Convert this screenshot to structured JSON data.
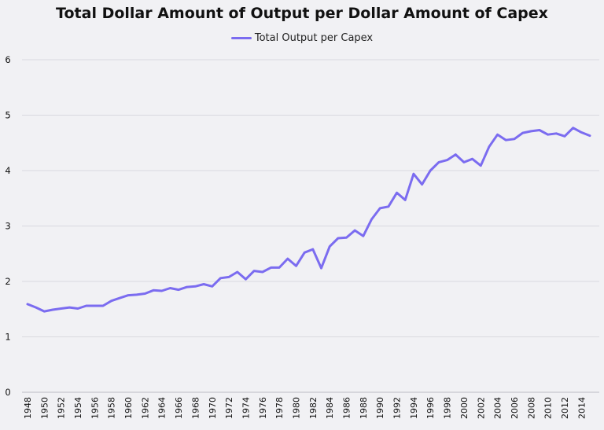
{
  "chart_data": {
    "type": "line",
    "title": "Total Dollar Amount of Output per Dollar Amount of Capex",
    "xlabel": "",
    "ylabel": "",
    "legend_position": "top-center",
    "grid": "horizontal",
    "ylim": [
      0,
      6
    ],
    "y_ticks": [
      "0",
      "1",
      "2",
      "3",
      "4",
      "5",
      "6"
    ],
    "x_tick_labels": [
      "1948",
      "1950",
      "1952",
      "1954",
      "1956",
      "1958",
      "1960",
      "1962",
      "1964",
      "1966",
      "1968",
      "1970",
      "1972",
      "1974",
      "1976",
      "1978",
      "1980",
      "1982",
      "1984",
      "1986",
      "1988",
      "1990",
      "1992",
      "1994",
      "1996",
      "1998",
      "2000",
      "2002",
      "2004",
      "2006",
      "2008",
      "2010",
      "2012",
      "2014"
    ],
    "x": [
      1948,
      1949,
      1950,
      1951,
      1952,
      1953,
      1954,
      1955,
      1956,
      1957,
      1958,
      1959,
      1960,
      1961,
      1962,
      1963,
      1964,
      1965,
      1966,
      1967,
      1968,
      1969,
      1970,
      1971,
      1972,
      1973,
      1974,
      1975,
      1976,
      1977,
      1978,
      1979,
      1980,
      1981,
      1982,
      1983,
      1984,
      1985,
      1986,
      1987,
      1988,
      1989,
      1990,
      1991,
      1992,
      1993,
      1994,
      1995,
      1996,
      1997,
      1998,
      1999,
      2000,
      2001,
      2002,
      2003,
      2004,
      2005,
      2006,
      2007,
      2008,
      2009,
      2010,
      2011,
      2012,
      2013,
      2014,
      2015
    ],
    "series": [
      {
        "name": "Total Output per Capex",
        "color": "#7b6cf0",
        "values": [
          1.59,
          1.53,
          1.46,
          1.49,
          1.51,
          1.53,
          1.51,
          1.56,
          1.56,
          1.56,
          1.65,
          1.7,
          1.75,
          1.76,
          1.78,
          1.84,
          1.83,
          1.88,
          1.85,
          1.9,
          1.91,
          1.95,
          1.91,
          2.06,
          2.08,
          2.17,
          2.04,
          2.19,
          2.17,
          2.25,
          2.25,
          2.41,
          2.28,
          2.52,
          2.58,
          2.24,
          2.63,
          2.78,
          2.79,
          2.92,
          2.82,
          3.12,
          3.32,
          3.35,
          3.6,
          3.47,
          3.94,
          3.75,
          4.0,
          4.15,
          4.19,
          4.29,
          4.15,
          4.21,
          4.09,
          4.43,
          4.65,
          4.55,
          4.57,
          4.68,
          4.71,
          4.73,
          4.65,
          4.67,
          4.62,
          4.77,
          4.69,
          4.63
        ]
      }
    ]
  }
}
